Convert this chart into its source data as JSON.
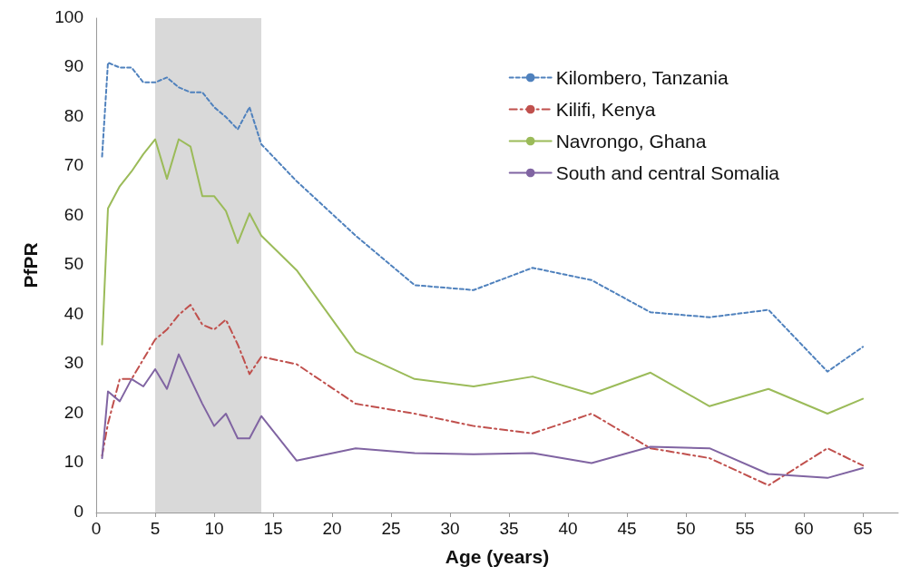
{
  "chart_data": {
    "type": "line",
    "xlabel": "Age (years)",
    "ylabel": "PfPR",
    "x": [
      0.5,
      1,
      2,
      3,
      4,
      5,
      6,
      7,
      8,
      9,
      10,
      11,
      12,
      13,
      14,
      17,
      22,
      27,
      32,
      37,
      42,
      47,
      52,
      57,
      62,
      65
    ],
    "series": [
      {
        "name": "Kilombero, Tanzania",
        "color": "#4f81bd",
        "line_style": "dashed",
        "values": [
          72,
          91,
          90,
          90,
          87,
          87,
          88,
          86,
          85,
          85,
          82,
          80,
          77.5,
          82,
          74.5,
          67,
          56,
          46,
          45,
          49.5,
          47,
          40.5,
          39.5,
          41,
          28.5,
          33.5
        ]
      },
      {
        "name": "Kilifi, Kenya",
        "color": "#c0504d",
        "line_style": "dashdot",
        "values": [
          11.5,
          18,
          27,
          27,
          31,
          35,
          37,
          40,
          42,
          38,
          37,
          39,
          34,
          28,
          31.5,
          30,
          22,
          20,
          17.5,
          16,
          20,
          13,
          11,
          5.5,
          13,
          9.5
        ]
      },
      {
        "name": "Navrongo, Ghana",
        "color": "#9bbb59",
        "line_style": "solid",
        "values": [
          34,
          61.5,
          66,
          69,
          72.5,
          75.5,
          67.5,
          75.5,
          74,
          64,
          64,
          61,
          54.5,
          60.5,
          56,
          49,
          32.5,
          27,
          25.5,
          27.5,
          24,
          28.3,
          21.5,
          25,
          20,
          23
        ]
      },
      {
        "name": "South and central Somalia",
        "color": "#8064a2",
        "line_style": "solid",
        "values": [
          11,
          24.5,
          22.5,
          27,
          25.5,
          29,
          25,
          32,
          27,
          22,
          17.5,
          20,
          15,
          15,
          19.5,
          10.5,
          13,
          12,
          11.8,
          12,
          10,
          13.3,
          13,
          7.8,
          7,
          9
        ]
      }
    ],
    "xlim": [
      0,
      68
    ],
    "xticks": [
      0,
      5,
      10,
      15,
      20,
      25,
      30,
      35,
      40,
      45,
      50,
      55,
      60,
      65
    ],
    "ylim": [
      0,
      100
    ],
    "yticks": [
      0,
      10,
      20,
      30,
      40,
      50,
      60,
      70,
      80,
      90,
      100
    ],
    "bands": [
      {
        "axis": "x",
        "from": 5,
        "to": 14,
        "color": "#d9d9d9"
      }
    ],
    "grid": false,
    "legend": "top right",
    "marker": "none"
  }
}
